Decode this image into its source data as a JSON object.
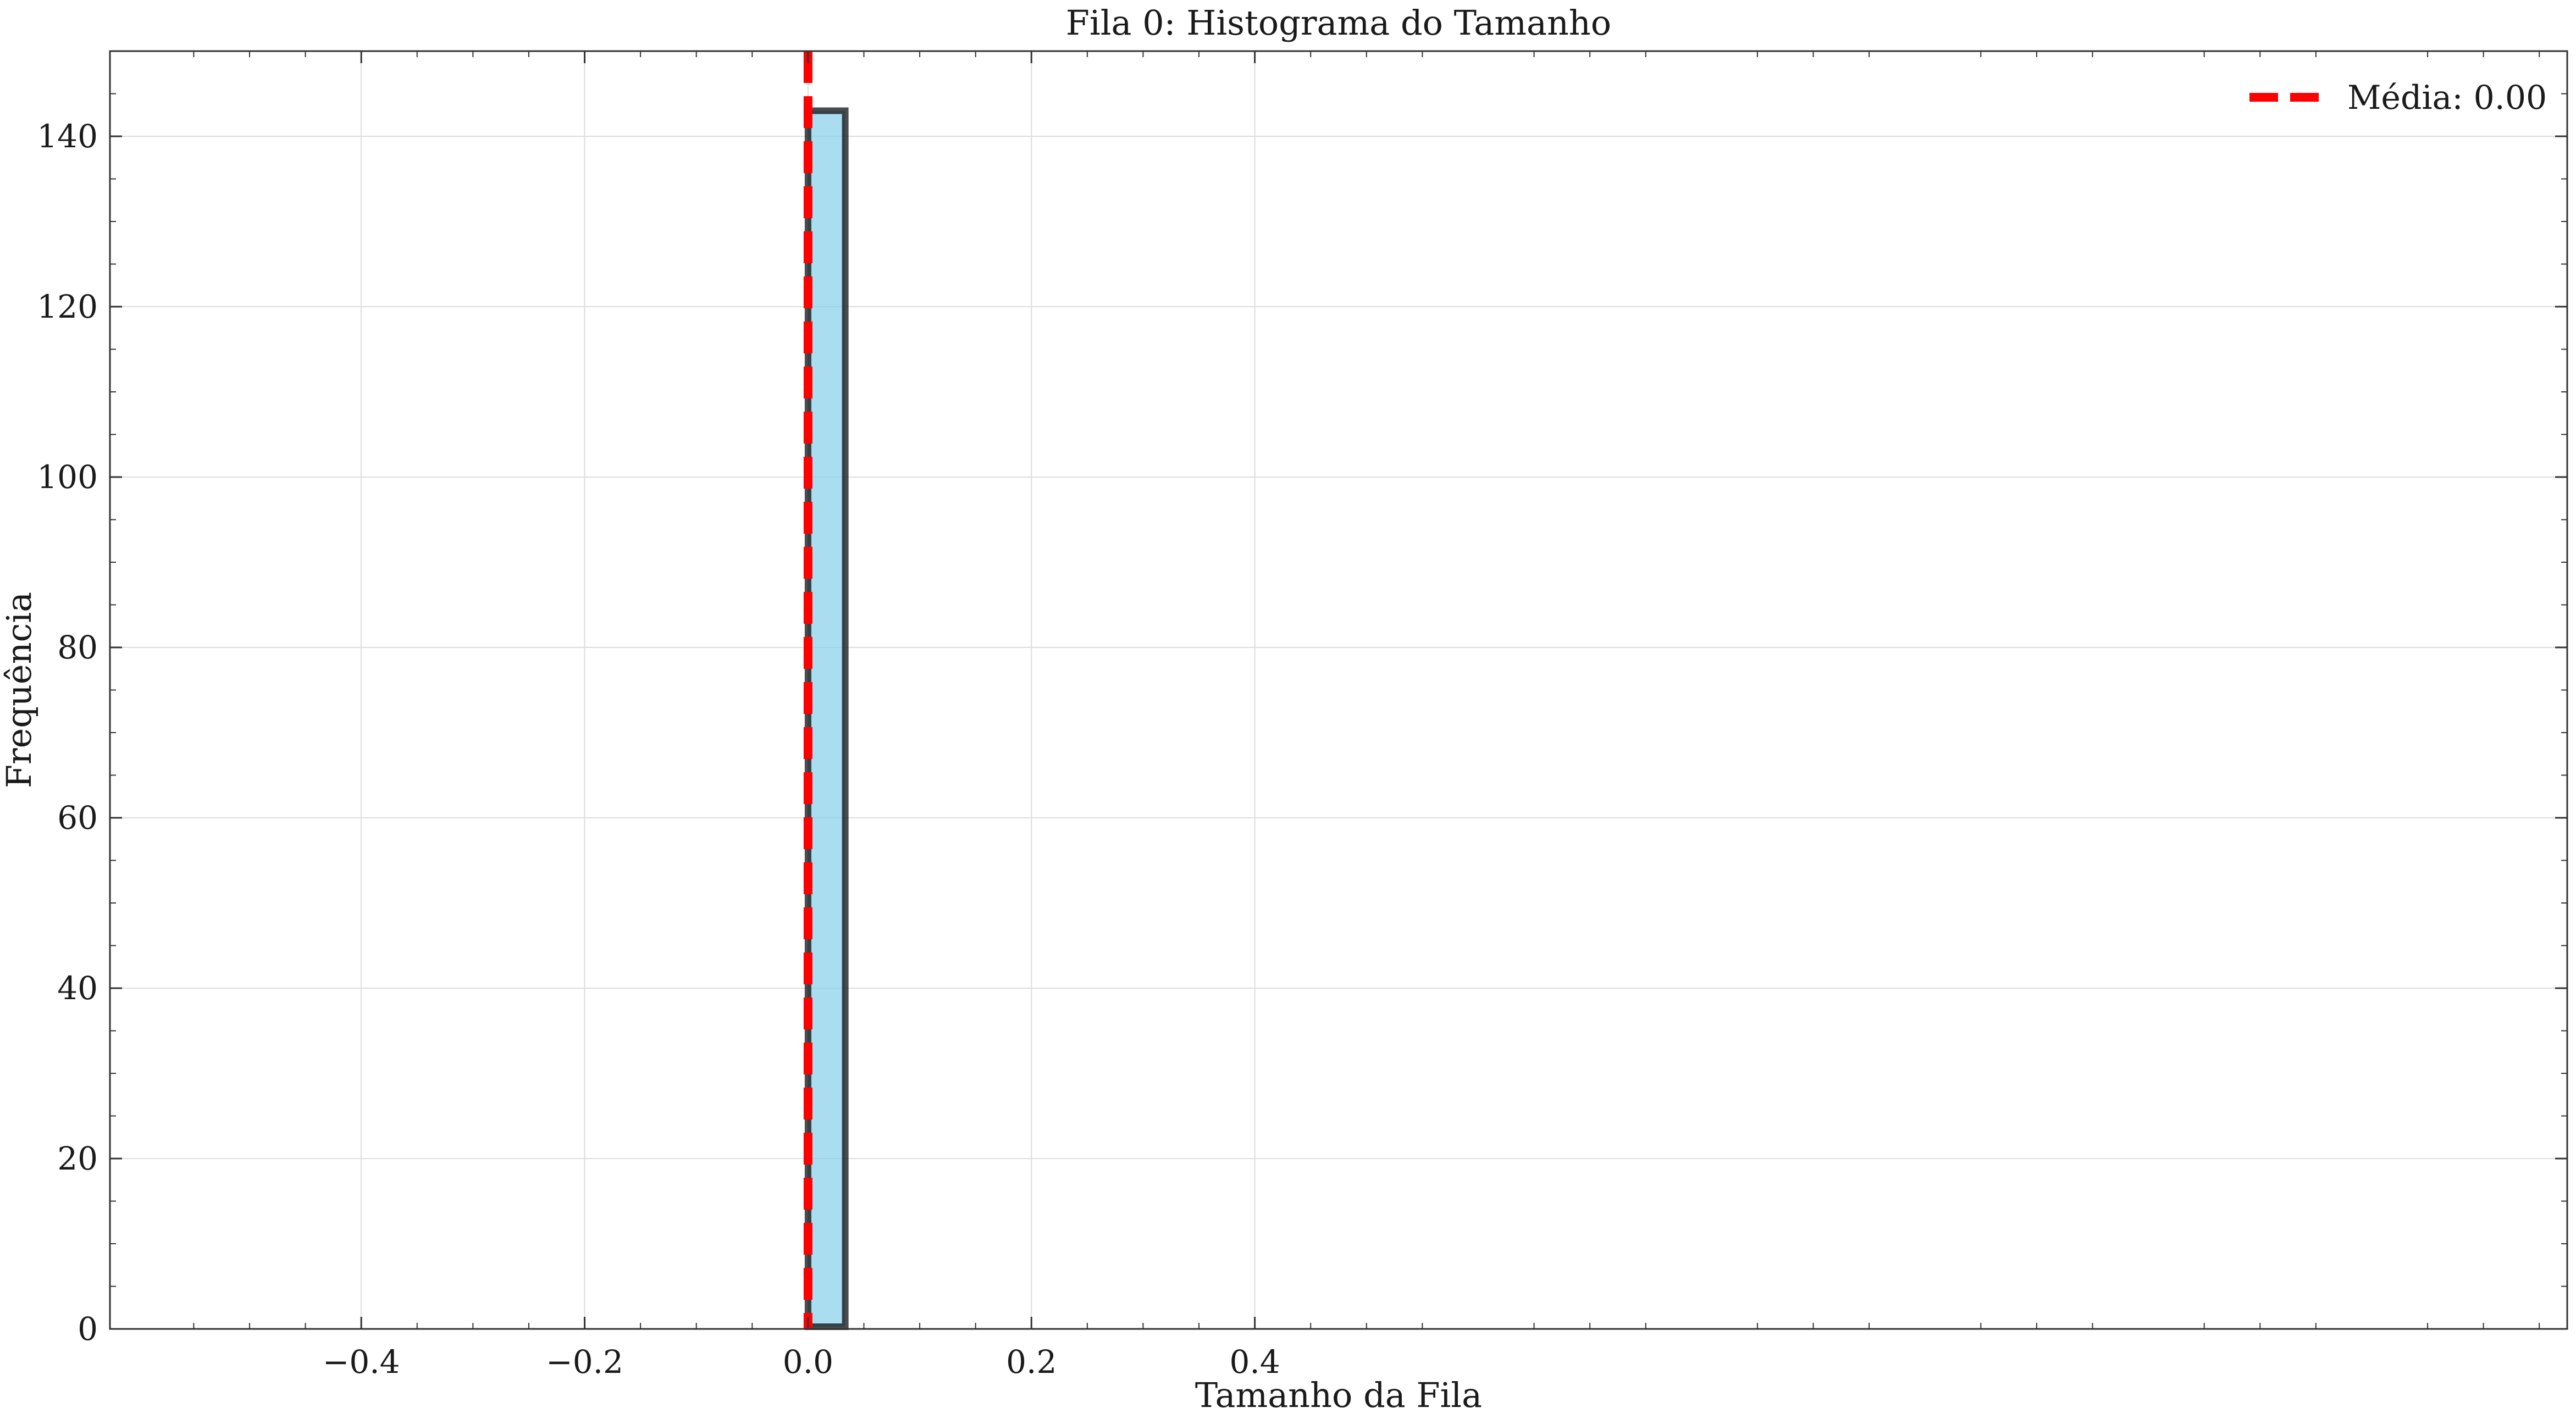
{
  "chart_data": {
    "type": "bar",
    "title": "Fila 0: Histograma do Tamanho",
    "xlabel": "Tamanho da Fila",
    "ylabel": "Frequência",
    "xlim": [
      -0.625,
      1.575
    ],
    "ylim": [
      0,
      150
    ],
    "x_ticks": [
      -0.4,
      -0.2,
      0.0,
      0.2,
      0.4
    ],
    "x_tick_labels": [
      "−0.4",
      "−0.2",
      "0.0",
      "0.2",
      "0.4"
    ],
    "y_ticks": [
      0,
      20,
      40,
      60,
      80,
      100,
      120,
      140
    ],
    "y_tick_labels": [
      "0",
      "20",
      "40",
      "60",
      "80",
      "100",
      "120",
      "140"
    ],
    "bins": {
      "start": -0.5,
      "end": 0.5,
      "count": 30,
      "counts": [
        0,
        0,
        0,
        0,
        0,
        0,
        0,
        0,
        0,
        0,
        0,
        0,
        0,
        0,
        0,
        143,
        0,
        0,
        0,
        0,
        0,
        0,
        0,
        0,
        0,
        0,
        0,
        0,
        0,
        0
      ]
    },
    "mean_line": {
      "x": 0.0,
      "label": "Média: 0.00",
      "color": "#ff0000"
    },
    "legend": {
      "position": "upper right",
      "entries": [
        "Média: 0.00"
      ]
    },
    "grid": true,
    "colors": {
      "bar_fill": "#87ceeb",
      "bar_edge": "#000000",
      "axis": "#333333",
      "grid": "#dddddd"
    }
  }
}
